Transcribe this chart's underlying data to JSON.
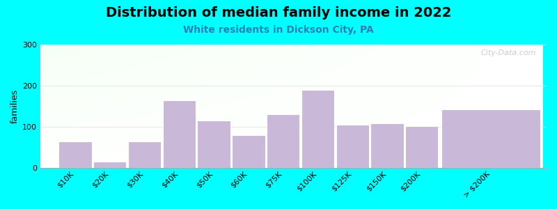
{
  "title": "Distribution of median family income in 2022",
  "subtitle": "White residents in Dickson City, PA",
  "categories": [
    "$10K",
    "$20K",
    "$30K",
    "$40K",
    "$50K",
    "$60K",
    "$75K",
    "$100K",
    "$125K",
    "$150K",
    "$200K",
    "> $200K"
  ],
  "values": [
    65,
    15,
    65,
    165,
    115,
    80,
    130,
    190,
    105,
    108,
    102,
    143
  ],
  "bar_widths": [
    1,
    1,
    1,
    1,
    1,
    1,
    1,
    1,
    1,
    1,
    1,
    3
  ],
  "bar_lefts": [
    0,
    1,
    2,
    3,
    4,
    5,
    6,
    7,
    8,
    9,
    10,
    11
  ],
  "ylabel": "families",
  "ylim": [
    0,
    300
  ],
  "yticks": [
    0,
    100,
    200,
    300
  ],
  "bar_color": "#c9b8d8",
  "bar_edge_color": "#ffffff",
  "background_outer": "#00ffff",
  "plot_bg_color_top_left": "#d4edda",
  "plot_bg_color_bottom_right": "#ffffff",
  "title_fontsize": 14,
  "subtitle_fontsize": 10,
  "subtitle_color": "#2980b9",
  "watermark": "City-Data.com",
  "grid_color": "#dddddd",
  "tick_label_fontsize": 8,
  "ylabel_fontsize": 9
}
